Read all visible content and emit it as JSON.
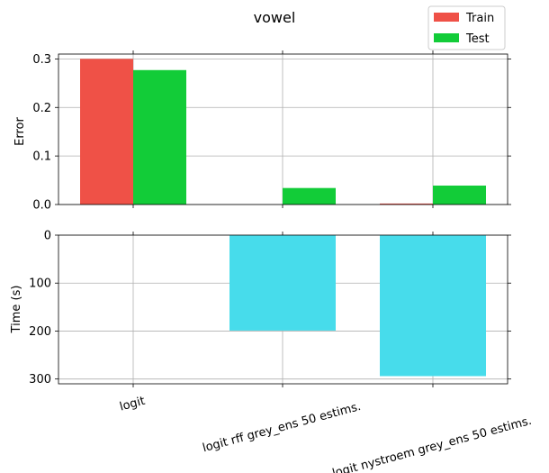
{
  "chart_data": {
    "type": "bar",
    "title": "vowel",
    "categories": [
      "logit",
      "logit rff grey_ens 50 estims.",
      "logit nystroem grey_ens 50 estims."
    ],
    "legend": {
      "placement": "top-right",
      "entries": [
        "Train",
        "Test"
      ]
    },
    "grid": true,
    "panels": [
      {
        "ylabel": "Error",
        "ylim": [
          0,
          0.31
        ],
        "yticks": [
          "0.0",
          "0.1",
          "0.2",
          "0.3"
        ],
        "series": [
          {
            "name": "Train",
            "color": "#ef5147",
            "values": [
              0.3,
              0.0,
              0.002
            ]
          },
          {
            "name": "Test",
            "color": "#12cc38",
            "values": [
              0.277,
              0.034,
              0.039
            ]
          }
        ]
      },
      {
        "ylabel": "Time (s)",
        "ylim": [
          0,
          310
        ],
        "inverted": true,
        "yticks": [
          "0",
          "100",
          "200",
          "300"
        ],
        "series": [
          {
            "color": "#47dceb",
            "values": [
              0,
              199,
              294
            ]
          }
        ]
      }
    ]
  }
}
